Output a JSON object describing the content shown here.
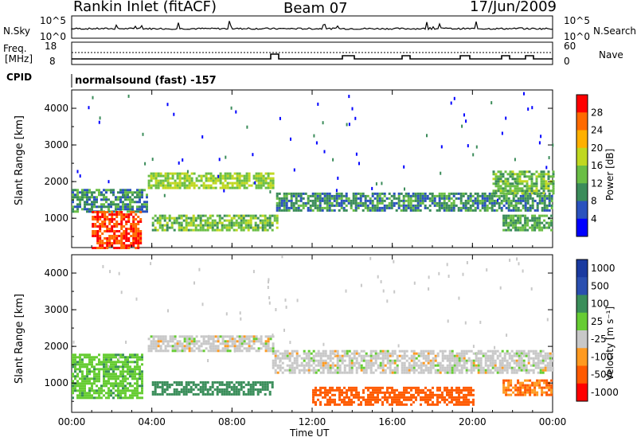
{
  "header": {
    "radar": "Rankin Inlet (fitACF)",
    "beam": "Beam 07",
    "date": "17/Jun/2009"
  },
  "noise_panel": {
    "left_label": "N.Sky",
    "left_ticks": [
      "10^5",
      "10^0"
    ],
    "right_label": "N.Search",
    "right_ticks": [
      "10^5",
      "10^0"
    ]
  },
  "freq_panel": {
    "left_label_1": "Freq.",
    "left_label_2": "[MHz]",
    "left_ticks": [
      "18",
      "8"
    ],
    "right_label": "Nave",
    "right_ticks": [
      "60",
      "0"
    ]
  },
  "cpid": {
    "label": "CPID",
    "value": "normalsound (fast) -157"
  },
  "colors": {
    "power": [
      "#0000ff",
      "#2a52be",
      "#3b8c5a",
      "#6abe45",
      "#c0d820",
      "#ffb000",
      "#ff6a00",
      "#ff0000"
    ],
    "velocity": [
      "#ff0000",
      "#ff5a00",
      "#ff9a20",
      "#c8c8c8",
      "#66cc33",
      "#3a8e5a",
      "#2a4fb0",
      "#1a3aa0"
    ]
  },
  "chart_data": [
    {
      "type": "heatmap",
      "name": "power",
      "ylabel": "Slant Range [km]",
      "yticks": [
        "1000",
        "2000",
        "3000",
        "4000"
      ],
      "ylim": [
        200,
        4500
      ],
      "xlim": [
        0,
        24
      ],
      "colorbar": {
        "label": "Power [dB]",
        "ticks": [
          "4",
          "8",
          "12",
          "16",
          "20",
          "24",
          "28"
        ],
        "range": [
          0,
          32
        ]
      },
      "bands": [
        {
          "t0": 0.0,
          "t1": 3.8,
          "r0": 1200,
          "r1": 1800,
          "level": 10
        },
        {
          "t0": 3.8,
          "t1": 10.0,
          "r0": 1850,
          "r1": 2250,
          "level": 16
        },
        {
          "t0": 4.0,
          "t1": 10.2,
          "r0": 700,
          "r1": 1100,
          "level": 14
        },
        {
          "t0": 10.2,
          "t1": 24.0,
          "r0": 1200,
          "r1": 1700,
          "level": 10
        },
        {
          "t0": 21.0,
          "t1": 24.0,
          "r0": 1700,
          "r1": 2300,
          "level": 14
        },
        {
          "t0": 1.0,
          "t1": 3.5,
          "r0": 200,
          "r1": 1200,
          "level": 28
        },
        {
          "t0": 21.5,
          "t1": 24.0,
          "r0": 700,
          "r1": 1100,
          "level": 12
        }
      ]
    },
    {
      "type": "heatmap",
      "name": "velocity",
      "ylabel": "Slant Range [km]",
      "yticks": [
        "1000",
        "2000",
        "3000",
        "4000"
      ],
      "ylim": [
        200,
        4500
      ],
      "xlim": [
        0,
        24
      ],
      "xticks": [
        "00:00",
        "04:00",
        "08:00",
        "12:00",
        "16:00",
        "20:00",
        "00:00"
      ],
      "xlabel": "Time UT",
      "colorbar": {
        "label": "Velocity [m s⁻¹]",
        "ticks": [
          "1000",
          "500",
          "100",
          "25",
          "-25",
          "-100",
          "-500",
          "-1000"
        ]
      },
      "bands": [
        {
          "t0": 3.8,
          "t1": 10.0,
          "r0": 1850,
          "r1": 2300,
          "level": 0
        },
        {
          "t0": 10.0,
          "t1": 24.0,
          "r0": 1250,
          "r1": 1900,
          "level": 0
        },
        {
          "t0": 4.0,
          "t1": 10.0,
          "r0": 700,
          "r1": 1050,
          "level": 150
        },
        {
          "t0": 0.0,
          "t1": 3.5,
          "r0": 600,
          "r1": 1800,
          "level": 80
        },
        {
          "t0": 12.0,
          "t1": 20.0,
          "r0": 400,
          "r1": 900,
          "level": -150
        },
        {
          "t0": 21.5,
          "t1": 24.0,
          "r0": 700,
          "r1": 1100,
          "level": -100
        }
      ]
    }
  ]
}
